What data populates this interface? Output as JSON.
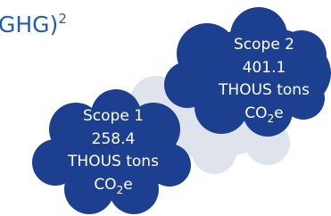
{
  "header": {
    "title": "GHG)",
    "title_sup": "2"
  },
  "nodes": [
    {
      "label": "Scope 2",
      "value": 401.1,
      "unit": "THOUS tons",
      "gas": "CO",
      "gas_sub": "2",
      "gas_suffix": "e"
    },
    {
      "label": "Scope 1",
      "value": 258.4,
      "unit": "THOUS tons",
      "gas": "CO",
      "gas_sub": "2",
      "gas_suffix": "e"
    }
  ]
}
